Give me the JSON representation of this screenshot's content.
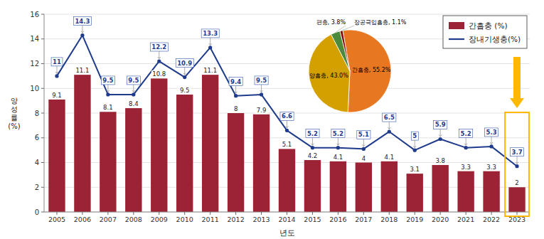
{
  "chart_data": [
    {
      "type": "bar",
      "xlabel": "년도",
      "ylabel": "양\n성\n률\n(%)",
      "categories": [
        "2005",
        "2006",
        "2007",
        "2008",
        "2009",
        "2010",
        "2011",
        "2012",
        "2013",
        "2014",
        "2015",
        "2016",
        "2017",
        "2018",
        "2019",
        "2020",
        "2021",
        "2022",
        "2023"
      ],
      "series": [
        {
          "name": "간흡충 (%)",
          "type": "bar",
          "color": "#9B2335",
          "values": [
            9.1,
            11.1,
            8.1,
            8.4,
            10.8,
            9.5,
            11.1,
            8,
            7.9,
            5.1,
            4.2,
            4.1,
            4,
            4.1,
            3.1,
            3.8,
            3.3,
            3.3,
            2
          ]
        },
        {
          "name": "장내기생충(%)",
          "type": "line",
          "color": "#1F3B8C",
          "marker": "circle",
          "values": [
            11,
            14.3,
            9.5,
            9.5,
            12.2,
            10.9,
            13.3,
            9.4,
            9.5,
            6.6,
            5.2,
            5.2,
            5.1,
            6.5,
            5,
            5.9,
            5.2,
            5.3,
            3.7
          ]
        }
      ],
      "ylim": [
        0,
        16
      ],
      "yticks": [
        0,
        2,
        4,
        6,
        8,
        10,
        12,
        14,
        16
      ],
      "grid": true,
      "legend": "upper right",
      "data_labels": true
    },
    {
      "type": "pie",
      "values": [
        55.2,
        43.0,
        3.8,
        1.1
      ],
      "value_labels": [
        "간흡충, 55.2%",
        "양흡충, 43.0%",
        "편충, 3.8%",
        "장공극입흡충, 1.1%"
      ],
      "colors": [
        "#E87722",
        "#D4A000",
        "#4B8B3B",
        "#8B0000"
      ]
    }
  ]
}
